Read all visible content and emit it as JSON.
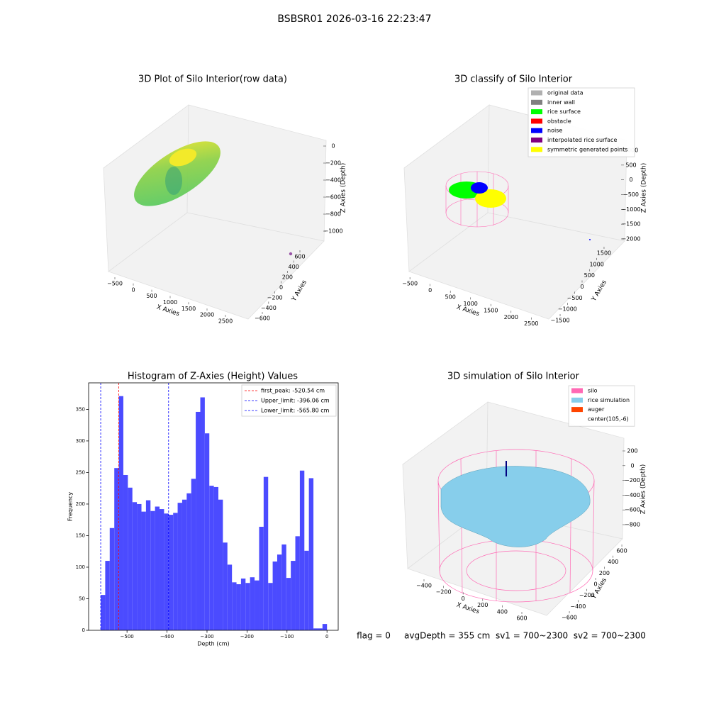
{
  "title": "BSBSR01 2026-03-16 22:23:47",
  "footer": "flag = 0     avgDepth = 355 cm  sv1 = 700~2300  sv2 = 700~2300",
  "chart_data": [
    {
      "type": "scatter3d",
      "title": "3D Plot of Silo Interior(row data)",
      "xlabel": "X Axies",
      "ylabel": "Y Axies",
      "zlabel": "Z Axies (Depth)",
      "xlim": [
        -650,
        2700
      ],
      "xticks": [
        {
          "value": -500,
          "label": "−500"
        },
        0,
        500,
        1000,
        1500,
        2000,
        2500
      ],
      "ylim": [
        -700,
        650
      ],
      "yticks": [
        {
          "value": -600,
          "label": "−600"
        },
        {
          "value": -400,
          "label": "−400"
        },
        {
          "value": -200,
          "label": "−200"
        },
        0,
        200,
        400,
        600
      ],
      "zlim": [
        -1100,
        50
      ],
      "zticks": [
        {
          "value": -1000,
          "label": "−1000"
        },
        {
          "value": -800,
          "label": "−800"
        },
        {
          "value": -600,
          "label": "−600"
        },
        {
          "value": -400,
          "label": "−400"
        },
        {
          "value": -200,
          "label": "−200"
        },
        0
      ]
    },
    {
      "type": "scatter3d",
      "title": "3D classify of Silo Interior",
      "xlabel": "X Axies",
      "ylabel": "Y Axies",
      "zlabel": "Z Axies (Depth)",
      "xlim": [
        -650,
        2700
      ],
      "xticks": [
        {
          "value": -500,
          "label": "−500"
        },
        0,
        500,
        1000,
        1500,
        2000,
        2500
      ],
      "ylim": [
        -1700,
        1700
      ],
      "yticks": [
        {
          "value": -1500,
          "label": "−1500"
        },
        {
          "value": -1000,
          "label": "−1000"
        },
        {
          "value": -500,
          "label": "−500"
        },
        0,
        500,
        1000,
        1500
      ],
      "zlim": [
        -2200,
        1200
      ],
      "zticks": [
        {
          "value": -2000,
          "label": "−2000"
        },
        {
          "value": -1500,
          "label": "−1500"
        },
        {
          "value": -1000,
          "label": "−1000"
        },
        {
          "value": -500,
          "label": "−500"
        },
        0,
        500,
        1000
      ],
      "series": [
        {
          "name": "original data",
          "color": "#b0b0b0"
        },
        {
          "name": "inner wall",
          "color": "#808080"
        },
        {
          "name": "rice surface",
          "color": "#00ff00"
        },
        {
          "name": "obstacle",
          "color": "#ff0000"
        },
        {
          "name": "noise",
          "color": "#0000ff"
        },
        {
          "name": "interpolated rice surface",
          "color": "#800080"
        },
        {
          "name": "symmetric generated points",
          "color": "#ffff00"
        }
      ]
    },
    {
      "type": "histogram",
      "title": "Histogram of Z-Axies (Height) Values",
      "xlabel": "Depth (cm)",
      "ylabel": "Frequency",
      "color": "#4b4bff",
      "bins": [
        -565.8,
        -554.5,
        -543.2,
        -531.8,
        -520.5,
        -509.2,
        -497.9,
        -486.6,
        -475.3,
        -463.9,
        -452.6,
        -441.3,
        -430.0,
        -418.7,
        -407.4,
        -396.1,
        -384.7,
        -373.4,
        -362.1,
        -350.8,
        -339.5,
        -328.2,
        -316.8,
        -305.5,
        -294.2,
        -282.9,
        -271.6,
        -260.3,
        -249.0,
        -237.6,
        -226.3,
        -215.0,
        -203.7,
        -192.4,
        -181.1,
        -169.7,
        -158.4,
        -147.1,
        -135.8,
        -124.5,
        -113.2,
        -101.8,
        -90.5,
        -79.2,
        -67.9,
        -56.6,
        -45.3,
        -33.9,
        -22.6,
        -11.3,
        0
      ],
      "values": [
        56,
        110,
        162,
        257,
        371,
        246,
        226,
        203,
        200,
        188,
        206,
        189,
        196,
        192,
        185,
        183,
        186,
        202,
        207,
        217,
        240,
        346,
        369,
        312,
        229,
        227,
        207,
        139,
        104,
        76,
        73,
        82,
        75,
        84,
        79,
        164,
        243,
        75,
        109,
        120,
        136,
        83,
        110,
        149,
        253,
        126,
        241,
        3,
        3,
        10
      ],
      "xlim": [
        -596,
        28
      ],
      "xticks": [
        {
          "value": -500,
          "label": "−500"
        },
        {
          "value": -400,
          "label": "−400"
        },
        {
          "value": -300,
          "label": "−300"
        },
        {
          "value": -200,
          "label": "−200"
        },
        {
          "value": -100,
          "label": "−100"
        },
        0
      ],
      "ylim": [
        0,
        392
      ],
      "yticks": [
        0,
        50,
        100,
        150,
        200,
        250,
        300,
        350
      ],
      "lines": [
        {
          "name": "first_peak: -520.54 cm",
          "value": -520.54,
          "color": "#ff0000"
        },
        {
          "name": "Upper_limit: -396.06 cm",
          "value": -396.06,
          "color": "#0000ff"
        },
        {
          "name": "Lower_limit: -565.80 cm",
          "value": -565.8,
          "color": "#0000ff"
        }
      ]
    },
    {
      "type": "surface3d",
      "title": "3D simulation of Silo Interior",
      "xlabel": "X Axies",
      "ylabel": "Y Axies",
      "zlabel": "Z Axies (Depth)",
      "xlim": [
        -550,
        750
      ],
      "xticks": [
        {
          "value": -400,
          "label": "−400"
        },
        {
          "value": -200,
          "label": "−200"
        },
        0,
        200,
        400,
        600
      ],
      "ylim": [
        -750,
        750
      ],
      "yticks": [
        {
          "value": -600,
          "label": "−600"
        },
        {
          "value": -400,
          "label": "−400"
        },
        {
          "value": -200,
          "label": "−200"
        },
        0,
        200,
        400,
        600
      ],
      "zlim": [
        -950,
        350
      ],
      "zticks": [
        {
          "value": -800,
          "label": "−800"
        },
        {
          "value": -600,
          "label": "−600"
        },
        {
          "value": -400,
          "label": "−400"
        },
        {
          "value": -200,
          "label": "−200"
        },
        0,
        200
      ],
      "series": [
        {
          "name": "silo",
          "color": "#ff69b4"
        },
        {
          "name": "rice simulation",
          "color": "#87ceeb"
        },
        {
          "name": "auger",
          "color": "#ff4500"
        },
        {
          "name": "center(105,-6)",
          "color": "#ffffff"
        }
      ]
    }
  ]
}
